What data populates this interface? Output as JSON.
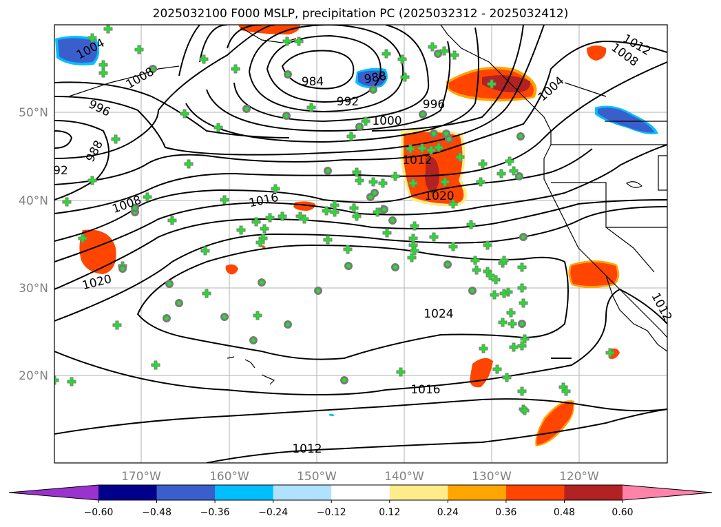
{
  "title": "2025032100 F000 MSLP, precipitation PC (2025032312 - 2025032412)",
  "lon_labels": [
    "170°W",
    "160°W",
    "150°W",
    "140°W",
    "130°W",
    "120°W"
  ],
  "lat_labels": [
    "50°N",
    "40°N",
    "30°N",
    "20°N"
  ],
  "contour_labels": [
    "1004",
    "1008",
    "1012",
    "984",
    "988",
    "992",
    "996",
    "1000",
    "1004",
    "1008",
    "1012",
    "996",
    "988",
    "92",
    "1016",
    "1008",
    "1012",
    "1020",
    "1020",
    "1024",
    "1016",
    "1012"
  ],
  "colorbar": {
    "colors": [
      "#9a32cd",
      "#00008b",
      "#3a5fcd",
      "#00bfff",
      "#b0e2ff",
      "#ffffff",
      "#ffec8b",
      "#ffa500",
      "#ff4500",
      "#b22222",
      "#ff82ab"
    ],
    "ticks": [
      "−0.60",
      "−0.48",
      "−0.36",
      "−0.24",
      "−0.12",
      "0.12",
      "0.24",
      "0.36",
      "0.48",
      "0.60"
    ]
  },
  "marker_colors": {
    "cross": "#22e02a",
    "circle_fill": "#22e02a",
    "circle_edge": "#7a7a7a"
  }
}
